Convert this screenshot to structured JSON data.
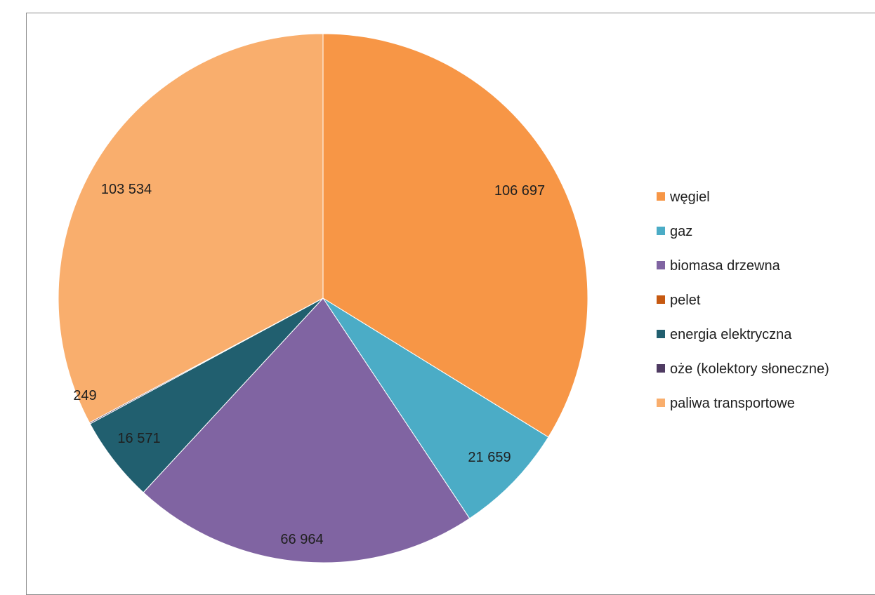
{
  "top_strip_text": "",
  "chart_data": {
    "type": "pie",
    "title": "",
    "categories": [
      "węgiel",
      "gaz",
      "biomasa drzewna",
      "pelet",
      "energia elektryczna",
      "oże (kolektory słoneczne)",
      "paliwa transportowe"
    ],
    "values": [
      106697,
      21659,
      66964,
      0,
      16571,
      249,
      103534
    ],
    "data_labels": [
      "106 697",
      "21 659",
      "66 964",
      "",
      "16 571",
      "249",
      "103 534"
    ],
    "colors": [
      "#F79646",
      "#4BACC6",
      "#8064A2",
      "#C65911",
      "#215F6F",
      "#4F3B62",
      "#F9AE6D"
    ],
    "legend_position": "right",
    "grid": false
  }
}
